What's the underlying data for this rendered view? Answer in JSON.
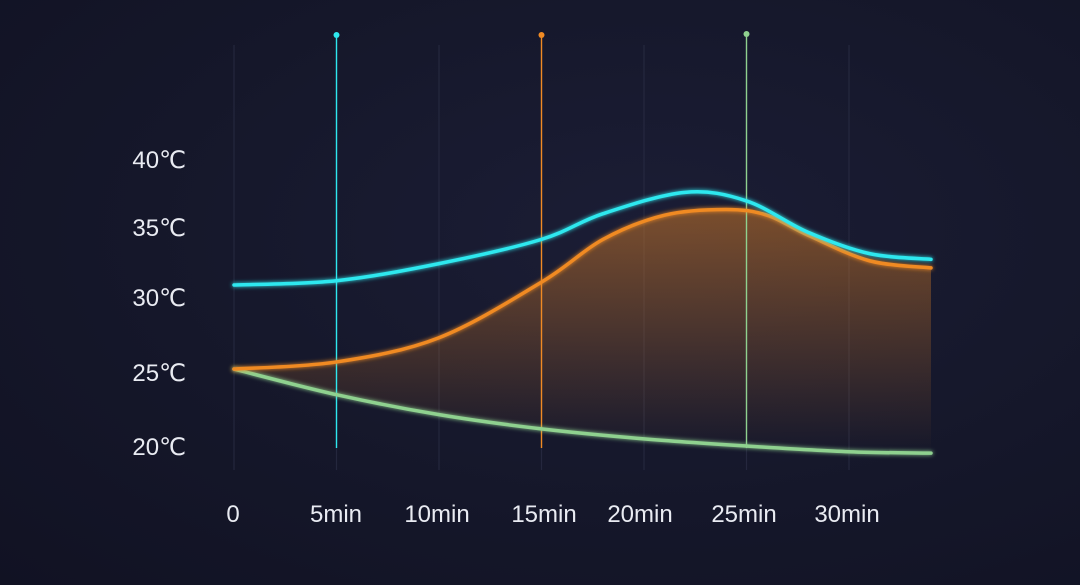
{
  "chart_data": {
    "type": "line",
    "title": "",
    "xlabel": "",
    "ylabel": "",
    "x": [
      0,
      5,
      10,
      15,
      20,
      25,
      30,
      34
    ],
    "x_tick_labels": [
      "0",
      "5min",
      "10min",
      "15min",
      "20min",
      "25min",
      "30min"
    ],
    "x_tick_values": [
      0,
      5,
      10,
      15,
      20,
      25,
      30
    ],
    "y_tick_labels": [
      "40℃",
      "35℃",
      "30℃",
      "25℃",
      "20℃"
    ],
    "y_tick_values": [
      40,
      35,
      30,
      25,
      20
    ],
    "xlim": [
      0,
      34
    ],
    "ylim": [
      20,
      40
    ],
    "grid": true,
    "legend": "none",
    "markers_x": [
      {
        "x": 5,
        "color": "#2ee8ef"
      },
      {
        "x": 15,
        "color": "#f08a24"
      },
      {
        "x": 25,
        "color": "#8fd18f"
      }
    ],
    "series": [
      {
        "color": "#2ee8ef",
        "x": [
          0,
          5,
          10,
          15,
          18,
          22,
          25,
          28,
          31,
          34
        ],
        "values": [
          31.3,
          31.6,
          32.8,
          34.5,
          36.3,
          37.8,
          37.2,
          35.0,
          33.5,
          33.1
        ]
      },
      {
        "color": "#f08a24",
        "x": [
          0,
          5,
          10,
          15,
          18,
          21,
          24,
          26,
          28,
          31,
          34
        ],
        "values": [
          25.4,
          25.9,
          27.6,
          31.5,
          34.5,
          36.2,
          36.6,
          36.2,
          34.8,
          33.0,
          32.5
        ]
      },
      {
        "color": "#8fd18f",
        "x": [
          0,
          5,
          10,
          15,
          20,
          25,
          30,
          34
        ],
        "values": [
          25.4,
          23.6,
          22.2,
          21.2,
          20.5,
          20.0,
          19.6,
          19.5
        ]
      }
    ]
  },
  "colors": {
    "background": "#141628",
    "text": "#e9ebf2",
    "grid": "#2a2d44"
  }
}
